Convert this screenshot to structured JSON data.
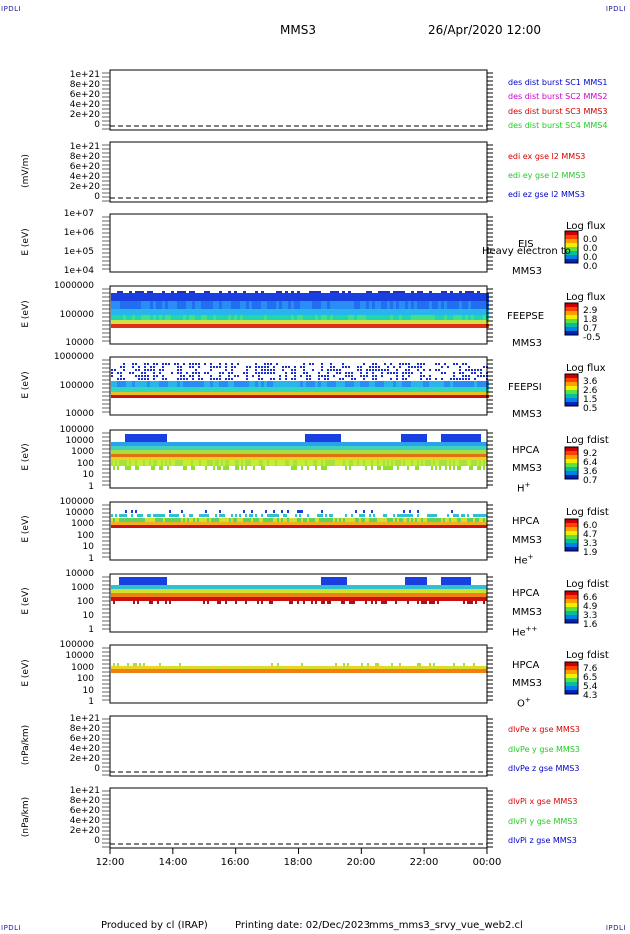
{
  "header": {
    "corner_tl": "IPDLI",
    "corner_tr": "IPDLI",
    "corner_bl": "IPDLI",
    "corner_br": "IPDLI",
    "spacecraft": "MMS3",
    "datetime": "26/Apr/2020 12:00"
  },
  "footer": {
    "produced_by": "Produced by cl (IRAP)",
    "printing_date": "Printing date: 02/Dec/2023",
    "script_name": "mms_mms3_srvy_vue_web2.cl"
  },
  "colors": {
    "mms1": "#0000cc",
    "mms2": "#cc00cc",
    "mms3": "#cc0000",
    "mms4": "#00cc00",
    "red": "#dd0000",
    "green": "#22cc22",
    "blue": "#0000cc"
  },
  "x_ticks": [
    "12:00",
    "14:00",
    "16:00",
    "18:00",
    "20:00",
    "22:00",
    "00:00"
  ],
  "panels": {
    "p1": {
      "ylabel": "",
      "ticks": [
        "1e+21",
        "8e+20",
        "6e+20",
        "4e+20",
        "2e+20",
        "0"
      ],
      "legend": [
        "des dist burst SC1 MMS1",
        "des dist burst SC2 MMS2",
        "des dist burst SC3 MMS3",
        "des dist burst SC4 MMS4"
      ]
    },
    "p2": {
      "ylabel": "(mV/m)",
      "ticks": [
        "1e+21",
        "8e+20",
        "6e+20",
        "4e+20",
        "2e+20",
        "0"
      ],
      "legend": [
        "edi ex gse l2 MMS3",
        "edi ey gse l2 MMS3",
        "edi ez gse l2 MMS3"
      ]
    },
    "p3": {
      "ylabel": "E (eV)",
      "ticks": [
        "1e+07",
        "1e+06",
        "1e+05",
        "1e+04"
      ],
      "inst": "EIS",
      "sc": "MMS3",
      "overlay": "Heavy electron to",
      "cb_title": "Log flux",
      "cb_values": [
        "0.0",
        "0.0",
        "0.0",
        "0.0"
      ]
    },
    "p4": {
      "ylabel": "E (eV)",
      "ticks": [
        "1000000",
        "100000",
        "10000"
      ],
      "inst": "FEEPSE",
      "sc": "MMS3",
      "cb_title": "Log flux",
      "cb_values": [
        "2.9",
        "1.8",
        "0.7",
        "-0.5"
      ]
    },
    "p5": {
      "ylabel": "E (eV)",
      "ticks": [
        "1000000",
        "100000",
        "10000"
      ],
      "inst": "FEEPSI",
      "sc": "MMS3",
      "cb_title": "Log flux",
      "cb_values": [
        "3.6",
        "2.6",
        "1.5",
        "0.5"
      ]
    },
    "p6": {
      "ylabel": "E (eV)",
      "ticks": [
        "100000",
        "10000",
        "1000",
        "100",
        "10",
        "1"
      ],
      "inst": "HPCA",
      "sc": "MMS3",
      "species": "H",
      "charge": "+",
      "cb_title": "Log fdist",
      "cb_values": [
        "9.2",
        "6.4",
        "3.6",
        "0.7"
      ]
    },
    "p7": {
      "ylabel": "E (eV)",
      "ticks": [
        "100000",
        "10000",
        "1000",
        "100",
        "10",
        "1"
      ],
      "inst": "HPCA",
      "sc": "MMS3",
      "species": "He",
      "charge": "+",
      "cb_title": "Log fdist",
      "cb_values": [
        "6.0",
        "4.7",
        "3.3",
        "1.9"
      ]
    },
    "p8": {
      "ylabel": "E (eV)",
      "ticks": [
        "10000",
        "1000",
        "100",
        "10",
        "1"
      ],
      "inst": "HPCA",
      "sc": "MMS3",
      "species": "He",
      "charge": "++",
      "cb_title": "Log fdist",
      "cb_values": [
        "6.6",
        "4.9",
        "3.3",
        "1.6"
      ]
    },
    "p9": {
      "ylabel": "E (eV)",
      "ticks": [
        "100000",
        "10000",
        "1000",
        "100",
        "10",
        "1"
      ],
      "inst": "HPCA",
      "sc": "MMS3",
      "species": "O",
      "charge": "+",
      "cb_title": "Log fdist",
      "cb_values": [
        "7.6",
        "6.5",
        "5.4",
        "4.3"
      ]
    },
    "p10": {
      "ylabel": "(nPa/km)",
      "ticks": [
        "1e+21",
        "8e+20",
        "6e+20",
        "4e+20",
        "2e+20",
        "0"
      ],
      "legend": [
        "dlvPe x gse MMS3",
        "dlvPe y gse MMS3",
        "dlvPe z gse MMS3"
      ]
    },
    "p11": {
      "ylabel": "(nPa/km)",
      "ticks": [
        "1e+21",
        "8e+20",
        "6e+20",
        "4e+20",
        "2e+20",
        "0"
      ],
      "legend": [
        "dlvPi x gse MMS3",
        "dlvPi y gse MMS3",
        "dlvPi z gse MMS3"
      ]
    }
  },
  "chart_data": {
    "type": "heatmap",
    "title": "MMS3 26/Apr/2020 12:00",
    "x_range": [
      "12:00",
      "00:00"
    ],
    "x_ticks": [
      "12:00",
      "14:00",
      "16:00",
      "18:00",
      "20:00",
      "22:00",
      "00:00"
    ],
    "panels": [
      {
        "name": "des dist burst",
        "type": "line",
        "ylim": [
          0,
          1e+21
        ],
        "series": [
          {
            "name": "des dist burst SC1 MMS1"
          },
          {
            "name": "des dist burst SC2 MMS2"
          },
          {
            "name": "des dist burst SC3 MMS3"
          },
          {
            "name": "des dist burst SC4 MMS4"
          }
        ]
      },
      {
        "name": "edi",
        "type": "line",
        "ylabel": "(mV/m)",
        "ylim": [
          0,
          1e+21
        ],
        "series": [
          {
            "name": "edi ex gse l2 MMS3"
          },
          {
            "name": "edi ey gse l2 MMS3"
          },
          {
            "name": "edi ez gse l2 MMS3"
          }
        ]
      },
      {
        "name": "EIS",
        "type": "heatmap",
        "ylabel": "E (eV)",
        "ylim": [
          10000.0,
          10000000.0
        ],
        "log": true,
        "colorbar": "Log flux",
        "cbar": [
          0.0,
          0.0,
          0.0,
          0.0
        ]
      },
      {
        "name": "FEEPSE",
        "type": "heatmap",
        "ylabel": "E (eV)",
        "ylim": [
          10000.0,
          1000000.0
        ],
        "log": true,
        "colorbar": "Log flux",
        "cbar": [
          2.9,
          1.8,
          0.7,
          -0.5
        ]
      },
      {
        "name": "FEEPSI",
        "type": "heatmap",
        "ylabel": "E (eV)",
        "ylim": [
          10000.0,
          1000000.0
        ],
        "log": true,
        "colorbar": "Log flux",
        "cbar": [
          3.6,
          2.6,
          1.5,
          0.5
        ]
      },
      {
        "name": "HPCA H+",
        "type": "heatmap",
        "ylabel": "E (eV)",
        "ylim": [
          1,
          100000.0
        ],
        "log": true,
        "colorbar": "Log fdist",
        "cbar": [
          9.2,
          6.4,
          3.6,
          0.7
        ]
      },
      {
        "name": "HPCA He+",
        "type": "heatmap",
        "ylabel": "E (eV)",
        "ylim": [
          1,
          100000.0
        ],
        "log": true,
        "colorbar": "Log fdist",
        "cbar": [
          6.0,
          4.7,
          3.3,
          1.9
        ]
      },
      {
        "name": "HPCA He++",
        "type": "heatmap",
        "ylabel": "E (eV)",
        "ylim": [
          1,
          10000.0
        ],
        "log": true,
        "colorbar": "Log fdist",
        "cbar": [
          6.6,
          4.9,
          3.3,
          1.6
        ]
      },
      {
        "name": "HPCA O+",
        "type": "heatmap",
        "ylabel": "E (eV)",
        "ylim": [
          1,
          100000.0
        ],
        "log": true,
        "colorbar": "Log fdist",
        "cbar": [
          7.6,
          6.5,
          5.4,
          4.3
        ]
      },
      {
        "name": "dlvPe",
        "type": "line",
        "ylabel": "(nPa/km)",
        "ylim": [
          0,
          1e+21
        ],
        "series": [
          {
            "name": "dlvPe x gse MMS3"
          },
          {
            "name": "dlvPe y gse MMS3"
          },
          {
            "name": "dlvPe z gse MMS3"
          }
        ]
      },
      {
        "name": "dlvPi",
        "type": "line",
        "ylabel": "(nPa/km)",
        "ylim": [
          0,
          1e+21
        ],
        "series": [
          {
            "name": "dlvPi x gse MMS3"
          },
          {
            "name": "dlvPi y gse MMS3"
          },
          {
            "name": "dlvPi z gse MMS3"
          }
        ]
      }
    ]
  }
}
